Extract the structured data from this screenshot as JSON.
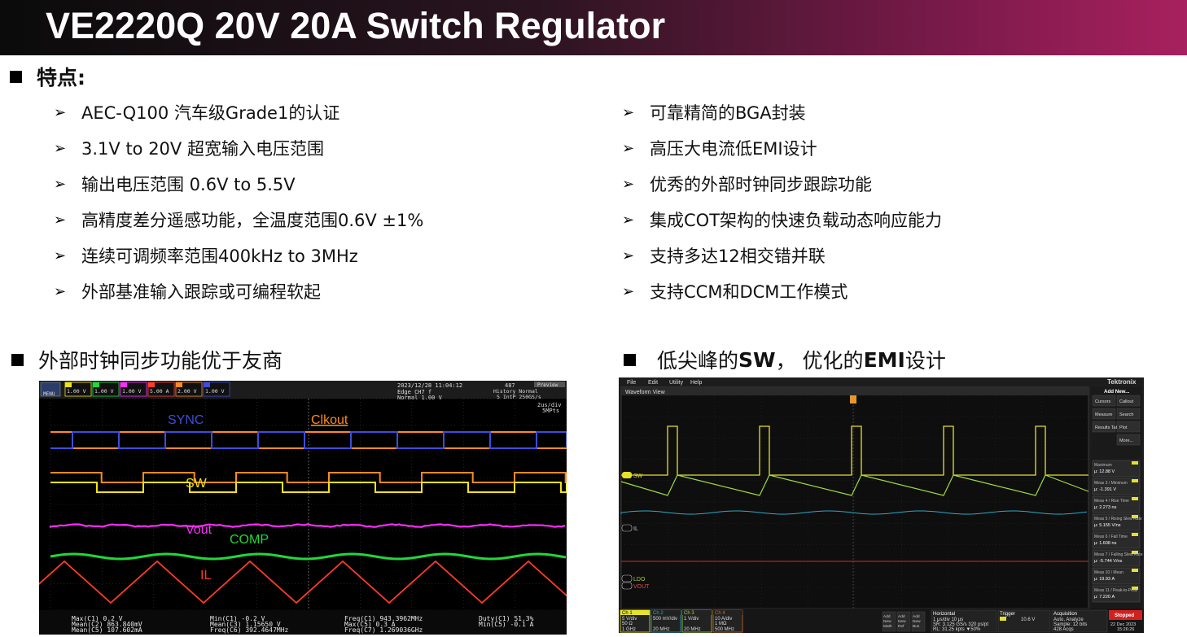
{
  "title": "VE2220Q 20V 20A Switch Regulator",
  "features_heading": "特点:",
  "features_left": [
    "AEC-Q100 汽车级Grade1的认证",
    "3.1V to 20V 超宽输入电压范围",
    "输出电压范围 0.6V to 5.5V",
    "高精度差分遥感功能，全温度范围0.6V ±1%",
    "连续可调频率范围400kHz to 3MHz",
    "外部基准输入跟踪或可编程软起"
  ],
  "features_right": [
    "可靠精简的BGA封装",
    "高压大电流低EMI设计",
    "优秀的外部时钟同步跟踪功能",
    "集成COT架构的快速负载动态响应能力",
    "支持多达12相交错并联",
    "支持CCM和DCM工作模式"
  ],
  "section_left": "外部时钟同步功能优于友商",
  "section_right": {
    "p1": "低尖峰的",
    "p2": "SW",
    "p3": "， 优化的",
    "p4": "EMI",
    "p5": "设计"
  },
  "scope_left": {
    "labels": {
      "sync": "SYNC",
      "clkout": "Clkout",
      "sw": "SW",
      "vout": "Vout",
      "comp": "COMP",
      "il": "IL"
    },
    "top": {
      "menu": "MENU",
      "ch1": "1.00 V",
      "ch2": "1.00 V",
      "ch3": "1.00 V",
      "ch4": "5.00 A",
      "ch5": "2.00 V",
      "ch6": "1.00 V",
      "datetime": "2023/12/28 11:04:12",
      "count": "487",
      "trigger1": "Edge CH7 f",
      "trigger2": "Normal 1.00 V",
      "mode1": "History Normal",
      "mode2": "5 IntP 250GS/s",
      "timebase1": "2us/div",
      "timebase2": "5MPts",
      "preview": "Preview"
    },
    "bottom": {
      "c1a": "Max(C1)  0.2 V",
      "c1b": "Mean(C2) 863.840mV",
      "c1c": "Mean(C5) 107.602mA",
      "c2a": "Min(C1) -0.2 V",
      "c2b": "Mean(C3)  1.15650 V",
      "c2c": "Freq(C6) 392.4647MHz",
      "c3a": "Freq(C1)  943.3962MHz",
      "c3b": "Max(C5)  0.3 A",
      "c3c": "Freq(C7)  1.269036GHz",
      "c4a": "Duty(C1)  51.3%",
      "c4b": "Min(C5) -0.1 A"
    }
  },
  "scope_right": {
    "menu": [
      "File",
      "Edit",
      "Utility",
      "Help"
    ],
    "brand": "Tektronix",
    "add_new": "Add New...",
    "waveform_view": "Waveform View",
    "side_buttons": [
      "Cursors",
      "Callout",
      "Measure",
      "Search",
      "Results Table",
      "Plot",
      "More..."
    ],
    "meas": [
      {
        "h": "Maximum",
        "v": "μ: 12.88 V"
      },
      {
        "h": "Meas 3 / Minimum",
        "v": "μ: -1.391 V"
      },
      {
        "h": "Meas 4 / Rise Time",
        "v": "μ: 2.273 ns"
      },
      {
        "h": "Meas 5 / Rising Slew Rate",
        "v": "μ: 5.155 V/ns"
      },
      {
        "h": "Meas 6 / Fall Time",
        "v": "μ: 1.608 ns"
      },
      {
        "h": "Meas 7 / Falling Slew Rate",
        "v": "μ: -5.744 V/ns"
      },
      {
        "h": "Meas 10 / Mean",
        "v": "μ: 19.93 A"
      },
      {
        "h": "Meas 11 / Peak-to-Peak",
        "v": "μ: 7.220 A"
      }
    ],
    "trace_labels": {
      "sw": "SW",
      "il": "IL",
      "ldo": "LDO",
      "vout": "VOUT"
    },
    "ch_boxes": [
      {
        "n": "Ch 1",
        "a": "5 V/div",
        "b": "50 Ω",
        "c": "1 GHz"
      },
      {
        "n": "Ch 2",
        "a": "500 mV/div",
        "b": "",
        "c": "20 MHz"
      },
      {
        "n": "Ch 3",
        "a": "1 V/div",
        "b": "",
        "c": "20 MHz"
      },
      {
        "n": "Ch 4",
        "a": "10 A/div",
        "b": "1 MΩ",
        "c": "500 MHz"
      }
    ],
    "new_buttons": [
      "Add New Math",
      "Add New Ref",
      "Add New Bus"
    ],
    "horizontal": {
      "h": "Horizontal",
      "a": "1 μs/div   10 μs",
      "b": "SR: 3.125 GS/s  320 ps/pt",
      "c": "RL: 31.25 kpts  ▼50%"
    },
    "trigger": {
      "h": "Trigger",
      "a": "10.6 V"
    },
    "acquisition": {
      "h": "Acquisition",
      "a": "Auto,     Analyze",
      "b": "Sample: 12 bits",
      "c": "428 Acqs"
    },
    "stopped": "Stopped",
    "date": "22 Dec 2023",
    "time": "15:26:26"
  },
  "colors": {
    "sync": "#3d4ddc",
    "clkout": "#ff8a1f",
    "sw": "#f2e21a",
    "vout": "#ff2cff",
    "comp": "#1fd83a",
    "il": "#ff3b2a",
    "tek_sw": "#e6e22a",
    "tek_ldo": "#9fd83a",
    "tek_il": "#2fa8c8",
    "tek_vout": "#b0242a"
  }
}
